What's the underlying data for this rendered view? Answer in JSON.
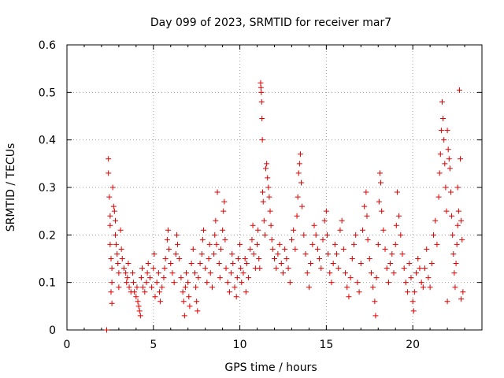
{
  "chart_data": {
    "type": "scatter",
    "title": "Day 099 of 2023, SRMTID for receiver mar7",
    "xlabel": "GPS time / hours",
    "ylabel": "SRMTID / TECUs",
    "xlim": [
      0,
      24
    ],
    "ylim": [
      0,
      0.6
    ],
    "xticks": [
      0,
      5,
      10,
      15,
      20
    ],
    "xtick_labels": [
      "0",
      "5",
      "10",
      "15",
      "20"
    ],
    "yticks": [
      0,
      0.1,
      0.2,
      0.3,
      0.4,
      0.5,
      0.6
    ],
    "ytick_labels": [
      "0",
      "0.1",
      "0.2",
      "0.3",
      "0.4",
      "0.5",
      "0.6"
    ],
    "grid": true,
    "marker": "+",
    "color": "#e00000",
    "series": [
      {
        "name": "SRMTID",
        "points": [
          [
            2.3,
            0.0
          ],
          [
            2.4,
            0.36
          ],
          [
            2.4,
            0.33
          ],
          [
            2.45,
            0.28
          ],
          [
            2.5,
            0.24
          ],
          [
            2.5,
            0.22
          ],
          [
            2.5,
            0.18
          ],
          [
            2.55,
            0.15
          ],
          [
            2.6,
            0.13
          ],
          [
            2.6,
            0.1
          ],
          [
            2.55,
            0.08
          ],
          [
            2.6,
            0.056
          ],
          [
            2.65,
            0.3
          ],
          [
            2.7,
            0.26
          ],
          [
            2.75,
            0.25
          ],
          [
            2.8,
            0.23
          ],
          [
            2.8,
            0.2
          ],
          [
            2.85,
            0.18
          ],
          [
            2.9,
            0.16
          ],
          [
            2.95,
            0.14
          ],
          [
            3.0,
            0.12
          ],
          [
            3.0,
            0.09
          ],
          [
            3.1,
            0.21
          ],
          [
            3.15,
            0.17
          ],
          [
            3.2,
            0.15
          ],
          [
            3.3,
            0.13
          ],
          [
            3.4,
            0.12
          ],
          [
            3.45,
            0.1
          ],
          [
            3.5,
            0.11
          ],
          [
            3.55,
            0.14
          ],
          [
            3.6,
            0.09
          ],
          [
            3.7,
            0.08
          ],
          [
            3.8,
            0.12
          ],
          [
            3.85,
            0.1
          ],
          [
            3.9,
            0.08
          ],
          [
            4.0,
            0.07
          ],
          [
            4.05,
            0.09
          ],
          [
            4.1,
            0.06
          ],
          [
            4.15,
            0.05
          ],
          [
            4.2,
            0.04
          ],
          [
            4.25,
            0.03
          ],
          [
            4.3,
            0.11
          ],
          [
            4.35,
            0.13
          ],
          [
            4.4,
            0.09
          ],
          [
            4.5,
            0.08
          ],
          [
            4.6,
            0.1
          ],
          [
            4.65,
            0.12
          ],
          [
            4.7,
            0.14
          ],
          [
            4.8,
            0.11
          ],
          [
            4.9,
            0.09
          ],
          [
            5.0,
            0.13
          ],
          [
            5.05,
            0.16
          ],
          [
            5.1,
            0.07
          ],
          [
            5.2,
            0.1
          ],
          [
            5.3,
            0.12
          ],
          [
            5.35,
            0.08
          ],
          [
            5.4,
            0.06
          ],
          [
            5.5,
            0.09
          ],
          [
            5.6,
            0.11
          ],
          [
            5.65,
            0.13
          ],
          [
            5.7,
            0.15
          ],
          [
            5.8,
            0.19
          ],
          [
            5.85,
            0.21
          ],
          [
            5.9,
            0.17
          ],
          [
            6.0,
            0.14
          ],
          [
            6.1,
            0.12
          ],
          [
            6.2,
            0.1
          ],
          [
            6.3,
            0.16
          ],
          [
            6.35,
            0.2
          ],
          [
            6.4,
            0.18
          ],
          [
            6.5,
            0.15
          ],
          [
            6.6,
            0.11
          ],
          [
            6.7,
            0.08
          ],
          [
            6.75,
            0.06
          ],
          [
            6.8,
            0.03
          ],
          [
            6.85,
            0.09
          ],
          [
            6.9,
            0.12
          ],
          [
            7.0,
            0.1
          ],
          [
            7.05,
            0.07
          ],
          [
            7.1,
            0.05
          ],
          [
            7.2,
            0.14
          ],
          [
            7.3,
            0.17
          ],
          [
            7.4,
            0.12
          ],
          [
            7.45,
            0.09
          ],
          [
            7.5,
            0.06
          ],
          [
            7.55,
            0.04
          ],
          [
            7.6,
            0.11
          ],
          [
            7.7,
            0.14
          ],
          [
            7.8,
            0.16
          ],
          [
            7.85,
            0.19
          ],
          [
            7.9,
            0.21
          ],
          [
            8.0,
            0.13
          ],
          [
            8.1,
            0.1
          ],
          [
            8.2,
            0.15
          ],
          [
            8.25,
            0.18
          ],
          [
            8.3,
            0.12
          ],
          [
            8.4,
            0.09
          ],
          [
            8.5,
            0.16
          ],
          [
            8.55,
            0.2
          ],
          [
            8.6,
            0.23
          ],
          [
            8.65,
            0.18
          ],
          [
            8.7,
            0.29
          ],
          [
            8.8,
            0.14
          ],
          [
            8.85,
            0.11
          ],
          [
            8.9,
            0.17
          ],
          [
            9.0,
            0.21
          ],
          [
            9.05,
            0.25
          ],
          [
            9.1,
            0.27
          ],
          [
            9.15,
            0.19
          ],
          [
            9.2,
            0.13
          ],
          [
            9.3,
            0.1
          ],
          [
            9.4,
            0.08
          ],
          [
            9.5,
            0.12
          ],
          [
            9.55,
            0.16
          ],
          [
            9.6,
            0.14
          ],
          [
            9.7,
            0.09
          ],
          [
            9.8,
            0.07
          ],
          [
            9.85,
            0.11
          ],
          [
            9.9,
            0.15
          ],
          [
            10.0,
            0.18
          ],
          [
            10.05,
            0.13
          ],
          [
            10.1,
            0.1
          ],
          [
            10.2,
            0.12
          ],
          [
            10.3,
            0.15
          ],
          [
            10.35,
            0.08
          ],
          [
            10.4,
            0.14
          ],
          [
            10.5,
            0.11
          ],
          [
            10.6,
            0.17
          ],
          [
            10.7,
            0.19
          ],
          [
            10.75,
            0.22
          ],
          [
            10.8,
            0.16
          ],
          [
            10.9,
            0.13
          ],
          [
            11.0,
            0.18
          ],
          [
            11.05,
            0.21
          ],
          [
            11.1,
            0.15
          ],
          [
            11.15,
            0.13
          ],
          [
            11.2,
            0.52
          ],
          [
            11.22,
            0.51
          ],
          [
            11.24,
            0.5
          ],
          [
            11.26,
            0.48
          ],
          [
            11.28,
            0.445
          ],
          [
            11.3,
            0.4
          ],
          [
            11.32,
            0.29
          ],
          [
            11.35,
            0.27
          ],
          [
            11.4,
            0.23
          ],
          [
            11.45,
            0.2
          ],
          [
            11.5,
            0.34
          ],
          [
            11.55,
            0.35
          ],
          [
            11.6,
            0.32
          ],
          [
            11.65,
            0.3
          ],
          [
            11.7,
            0.28
          ],
          [
            11.75,
            0.25
          ],
          [
            11.8,
            0.22
          ],
          [
            11.85,
            0.19
          ],
          [
            11.9,
            0.17
          ],
          [
            12.0,
            0.15
          ],
          [
            12.1,
            0.13
          ],
          [
            12.2,
            0.16
          ],
          [
            12.3,
            0.18
          ],
          [
            12.4,
            0.14
          ],
          [
            12.5,
            0.12
          ],
          [
            12.6,
            0.17
          ],
          [
            12.7,
            0.15
          ],
          [
            12.8,
            0.13
          ],
          [
            12.9,
            0.1
          ],
          [
            13.0,
            0.19
          ],
          [
            13.1,
            0.21
          ],
          [
            13.2,
            0.17
          ],
          [
            13.3,
            0.24
          ],
          [
            13.35,
            0.28
          ],
          [
            13.4,
            0.33
          ],
          [
            13.45,
            0.35
          ],
          [
            13.5,
            0.37
          ],
          [
            13.55,
            0.31
          ],
          [
            13.6,
            0.26
          ],
          [
            13.7,
            0.2
          ],
          [
            13.8,
            0.16
          ],
          [
            13.9,
            0.12
          ],
          [
            14.0,
            0.09
          ],
          [
            14.1,
            0.14
          ],
          [
            14.2,
            0.18
          ],
          [
            14.3,
            0.22
          ],
          [
            14.4,
            0.2
          ],
          [
            14.5,
            0.17
          ],
          [
            14.6,
            0.15
          ],
          [
            14.7,
            0.13
          ],
          [
            14.8,
            0.19
          ],
          [
            14.9,
            0.23
          ],
          [
            15.0,
            0.25
          ],
          [
            15.05,
            0.2
          ],
          [
            15.1,
            0.16
          ],
          [
            15.2,
            0.12
          ],
          [
            15.3,
            0.1
          ],
          [
            15.4,
            0.14
          ],
          [
            15.5,
            0.18
          ],
          [
            15.6,
            0.16
          ],
          [
            15.7,
            0.13
          ],
          [
            15.8,
            0.21
          ],
          [
            15.9,
            0.23
          ],
          [
            16.0,
            0.17
          ],
          [
            16.1,
            0.12
          ],
          [
            16.2,
            0.09
          ],
          [
            16.3,
            0.07
          ],
          [
            16.4,
            0.11
          ],
          [
            16.5,
            0.15
          ],
          [
            16.6,
            0.18
          ],
          [
            16.7,
            0.2
          ],
          [
            16.8,
            0.1
          ],
          [
            16.9,
            0.08
          ],
          [
            17.0,
            0.14
          ],
          [
            17.1,
            0.21
          ],
          [
            17.2,
            0.26
          ],
          [
            17.3,
            0.29
          ],
          [
            17.35,
            0.24
          ],
          [
            17.4,
            0.19
          ],
          [
            17.5,
            0.15
          ],
          [
            17.6,
            0.12
          ],
          [
            17.7,
            0.09
          ],
          [
            17.8,
            0.06
          ],
          [
            17.85,
            0.03
          ],
          [
            17.9,
            0.11
          ],
          [
            18.0,
            0.18
          ],
          [
            18.05,
            0.27
          ],
          [
            18.1,
            0.33
          ],
          [
            18.15,
            0.31
          ],
          [
            18.2,
            0.25
          ],
          [
            18.3,
            0.21
          ],
          [
            18.4,
            0.17
          ],
          [
            18.5,
            0.13
          ],
          [
            18.6,
            0.1
          ],
          [
            18.7,
            0.14
          ],
          [
            18.8,
            0.16
          ],
          [
            18.9,
            0.12
          ],
          [
            19.0,
            0.18
          ],
          [
            19.05,
            0.22
          ],
          [
            19.1,
            0.29
          ],
          [
            19.2,
            0.24
          ],
          [
            19.3,
            0.2
          ],
          [
            19.4,
            0.16
          ],
          [
            19.5,
            0.13
          ],
          [
            19.6,
            0.1
          ],
          [
            19.7,
            0.08
          ],
          [
            19.8,
            0.14
          ],
          [
            19.9,
            0.11
          ],
          [
            20.0,
            0.06
          ],
          [
            20.05,
            0.04
          ],
          [
            20.1,
            0.08
          ],
          [
            20.2,
            0.12
          ],
          [
            20.3,
            0.15
          ],
          [
            20.4,
            0.13
          ],
          [
            20.5,
            0.1
          ],
          [
            20.6,
            0.09
          ],
          [
            20.7,
            0.13
          ],
          [
            20.8,
            0.17
          ],
          [
            20.9,
            0.11
          ],
          [
            21.0,
            0.09
          ],
          [
            21.1,
            0.14
          ],
          [
            21.2,
            0.2
          ],
          [
            21.3,
            0.23
          ],
          [
            21.4,
            0.18
          ],
          [
            21.5,
            0.28
          ],
          [
            21.55,
            0.33
          ],
          [
            21.6,
            0.37
          ],
          [
            21.65,
            0.42
          ],
          [
            21.7,
            0.48
          ],
          [
            21.75,
            0.445
          ],
          [
            21.8,
            0.4
          ],
          [
            21.85,
            0.35
          ],
          [
            21.9,
            0.3
          ],
          [
            21.95,
            0.25
          ],
          [
            22.0,
            0.42
          ],
          [
            22.05,
            0.38
          ],
          [
            22.1,
            0.36
          ],
          [
            22.15,
            0.34
          ],
          [
            22.2,
            0.29
          ],
          [
            22.25,
            0.24
          ],
          [
            22.3,
            0.2
          ],
          [
            22.35,
            0.16
          ],
          [
            22.4,
            0.12
          ],
          [
            22.45,
            0.09
          ],
          [
            22.5,
            0.14
          ],
          [
            22.55,
            0.18
          ],
          [
            22.6,
            0.22
          ],
          [
            22.65,
            0.25
          ],
          [
            22.7,
            0.505
          ],
          [
            22.75,
            0.36
          ],
          [
            22.8,
            0.23
          ],
          [
            22.85,
            0.19
          ],
          [
            22.9,
            0.08
          ],
          [
            22.8,
            0.065
          ],
          [
            22.0,
            0.06
          ],
          [
            22.6,
            0.3
          ]
        ]
      }
    ]
  }
}
